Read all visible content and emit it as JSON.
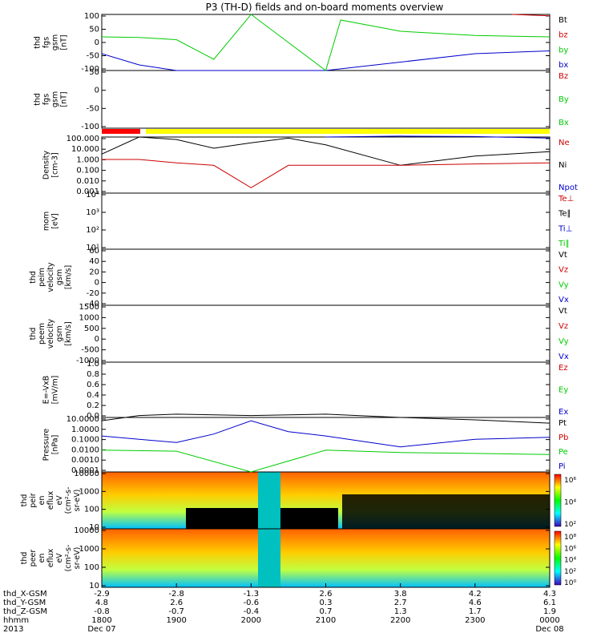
{
  "title": "P3 (TH-D) fields and on-board moments overview",
  "colors": {
    "black": "#000000",
    "red": "#cc0000",
    "green": "#00cc00",
    "blue": "#0000cc",
    "bar_red": "#ff0000",
    "bar_yellow": "#ffff00"
  },
  "panels": [
    {
      "id": "fgs",
      "ylabel": [
        "thd",
        "fgs",
        "gsm",
        "[nT]"
      ],
      "yticks": [
        "100",
        "50",
        "0",
        "-50",
        "-100"
      ],
      "legend": [
        {
          "text": "Bt",
          "color": "black"
        },
        {
          "text": "bz",
          "color": "red"
        },
        {
          "text": "by",
          "color": "green"
        },
        {
          "text": "bx",
          "color": "blue"
        }
      ]
    },
    {
      "id": "fgs_hires",
      "ylabel": [
        "thd",
        "fgs",
        "gsm",
        "[nT]"
      ],
      "yticks": [
        "50",
        "0",
        "-50",
        "-100"
      ],
      "legend": [
        {
          "text": "Bz",
          "color": "red"
        },
        {
          "text": "By",
          "color": "green"
        },
        {
          "text": "Bx",
          "color": "green"
        }
      ]
    },
    {
      "id": "density",
      "ylabel": [
        "Density",
        "[cm-3]"
      ],
      "yticks": [
        "100.000",
        "10.000",
        "1.000",
        "0.100",
        "0.010",
        "0.001"
      ],
      "legend": [
        {
          "text": "Ne",
          "color": "red"
        },
        {
          "text": "Ni",
          "color": "black"
        },
        {
          "text": "Npot",
          "color": "blue"
        }
      ]
    },
    {
      "id": "temp",
      "ylabel": [
        "mom",
        "[eV]"
      ],
      "yticks": [
        "10⁴",
        "10³",
        "10²",
        "10¹"
      ],
      "legend": [
        {
          "text": "Te⊥",
          "color": "red"
        },
        {
          "text": "Te∥",
          "color": "black"
        },
        {
          "text": "Ti⊥",
          "color": "blue"
        },
        {
          "text": "Ti∥",
          "color": "green"
        }
      ]
    },
    {
      "id": "peim_vel",
      "ylabel": [
        "thd",
        "peim",
        "velocity",
        "gsm",
        "[km/s]"
      ],
      "yticks": [
        "60",
        "40",
        "20",
        "0",
        "-20",
        "-40"
      ],
      "legend": [
        {
          "text": "Vt",
          "color": "black"
        },
        {
          "text": "Vz",
          "color": "red"
        },
        {
          "text": "Vy",
          "color": "green"
        },
        {
          "text": "Vx",
          "color": "blue"
        }
      ]
    },
    {
      "id": "peem_vel",
      "ylabel": [
        "thd",
        "peem",
        "velocity",
        "gsm",
        "[km/s]"
      ],
      "yticks": [
        "1500",
        "1000",
        "500",
        "0",
        "-500",
        "-1000"
      ],
      "legend": [
        {
          "text": "Vt",
          "color": "black"
        },
        {
          "text": "Vz",
          "color": "red"
        },
        {
          "text": "Vy",
          "color": "green"
        },
        {
          "text": "Vx",
          "color": "blue"
        }
      ]
    },
    {
      "id": "efield",
      "ylabel": [
        "E=-VxB",
        "[mV/m]"
      ],
      "yticks": [
        "1.0",
        "0.8",
        "0.6",
        "0.4",
        "0.2",
        "0.0"
      ],
      "legend": [
        {
          "text": "Ez",
          "color": "red"
        },
        {
          "text": "Ey",
          "color": "green"
        },
        {
          "text": "Ex",
          "color": "blue"
        }
      ]
    },
    {
      "id": "pressure",
      "ylabel": [
        "Pressure",
        "[nPa]"
      ],
      "yticks": [
        "10.0000",
        "1.0000",
        "0.1000",
        "0.0100",
        "0.0010",
        "0.0001"
      ],
      "legend": [
        {
          "text": "Pt",
          "color": "black"
        },
        {
          "text": "Pb",
          "color": "red"
        },
        {
          "text": "Pe",
          "color": "green"
        },
        {
          "text": "Pi",
          "color": "blue"
        }
      ]
    },
    {
      "id": "peir_flux",
      "ylabel": [
        "thd",
        "peir",
        "en",
        "eflux",
        "eV",
        "(cm²-s-",
        "sr-eV)"
      ],
      "yticks": [
        "10000",
        "1000",
        "100",
        "10"
      ],
      "cbar": [
        "10⁶",
        "10⁴",
        "10²"
      ]
    },
    {
      "id": "peer_flux",
      "ylabel": [
        "thd",
        "peer",
        "en",
        "eflux",
        "eV",
        "(cm²-s-",
        "sr-eV)"
      ],
      "yticks": [
        "10000",
        "1000",
        "100",
        "10"
      ],
      "cbar": [
        "10⁸",
        "10⁶",
        "10⁴",
        "10²",
        "10⁰"
      ]
    }
  ],
  "xaxis": {
    "row_labels": [
      "thd_X-GSM",
      "thd_Y-GSM",
      "thd_Z-GSM",
      "hhmm",
      "2013"
    ],
    "ticks": [
      {
        "x": "-2.9",
        "y": "4.8",
        "z": "-0.8",
        "hhmm": "1800",
        "date": "Dec 07"
      },
      {
        "x": "-2.8",
        "y": "2.6",
        "z": "-0.7",
        "hhmm": "1900",
        "date": ""
      },
      {
        "x": "-1.3",
        "y": "-0.6",
        "z": "-0.4",
        "hhmm": "2000",
        "date": ""
      },
      {
        "x": "2.6",
        "y": "0.3",
        "z": "0.7",
        "hhmm": "2100",
        "date": ""
      },
      {
        "x": "3.8",
        "y": "2.7",
        "z": "1.3",
        "hhmm": "2200",
        "date": ""
      },
      {
        "x": "4.2",
        "y": "4.6",
        "z": "1.7",
        "hhmm": "2300",
        "date": ""
      },
      {
        "x": "4.3",
        "y": "6.1",
        "z": "1.9",
        "hhmm": "0000",
        "date": "Dec 08"
      }
    ]
  },
  "chart_data": {
    "type": "line",
    "title": "P3 (TH-D) fields and on-board moments overview",
    "x_hhmm": [
      "1800",
      "1900",
      "2000",
      "2100",
      "2200",
      "2300",
      "0000"
    ],
    "series": [
      {
        "name": "bx",
        "panel": "fgs",
        "x": [
          18.0,
          18.5,
          19.0,
          20.0,
          21.0,
          22.0,
          23.0,
          24.0
        ],
        "values": [
          -40,
          -80,
          -100,
          -100,
          -100,
          -70,
          -40,
          -30
        ]
      },
      {
        "name": "by",
        "panel": "fgs",
        "x": [
          18.0,
          18.5,
          19.0,
          19.5,
          20.0,
          21.0,
          21.2,
          22.0,
          23.0,
          24.0
        ],
        "values": [
          20,
          18,
          10,
          -60,
          100,
          -100,
          80,
          40,
          25,
          20
        ]
      },
      {
        "name": "bz",
        "panel": "fgs",
        "x": [
          23.5,
          24.0
        ],
        "values": [
          100,
          95
        ]
      },
      {
        "name": "Ni",
        "panel": "density",
        "x": [
          18.0,
          18.5,
          19.0,
          19.5,
          20.0,
          20.5,
          21.0,
          22.0,
          23.0,
          24.0
        ],
        "values": [
          3,
          100,
          60,
          10,
          30,
          80,
          20,
          0.3,
          2,
          5
        ]
      },
      {
        "name": "Ne",
        "panel": "density",
        "x": [
          18.0,
          18.5,
          19.0,
          19.5,
          20.0,
          20.5,
          21.0,
          22.0,
          23.0,
          24.0
        ],
        "values": [
          1,
          1,
          0.5,
          0.3,
          0.003,
          0.3,
          0.3,
          0.3,
          0.4,
          0.5
        ]
      },
      {
        "name": "Npot",
        "panel": "density",
        "x": [
          21.0,
          22.0,
          23.0,
          24.0
        ],
        "values": [
          100,
          120,
          110,
          80
        ]
      },
      {
        "name": "Pi",
        "panel": "pressure",
        "x": [
          18.0,
          18.5,
          19.0,
          19.5,
          20.0,
          20.5,
          21.0,
          22.0,
          23.0,
          24.0
        ],
        "values": [
          0.2,
          0.1,
          0.05,
          0.3,
          5,
          0.5,
          0.2,
          0.02,
          0.1,
          0.15
        ]
      },
      {
        "name": "Pe",
        "panel": "pressure",
        "x": [
          18.0,
          19.0,
          20.0,
          21.0,
          22.0,
          23.0,
          24.0
        ],
        "values": [
          0.01,
          0.008,
          0.0001,
          0.01,
          0.006,
          0.005,
          0.004
        ]
      },
      {
        "name": "Pt",
        "panel": "pressure",
        "x": [
          18.0,
          18.5,
          19.0,
          20.0,
          21.0,
          22.0,
          23.0,
          24.0
        ],
        "values": [
          5,
          15,
          20,
          15,
          20,
          10,
          6,
          3
        ]
      }
    ]
  }
}
